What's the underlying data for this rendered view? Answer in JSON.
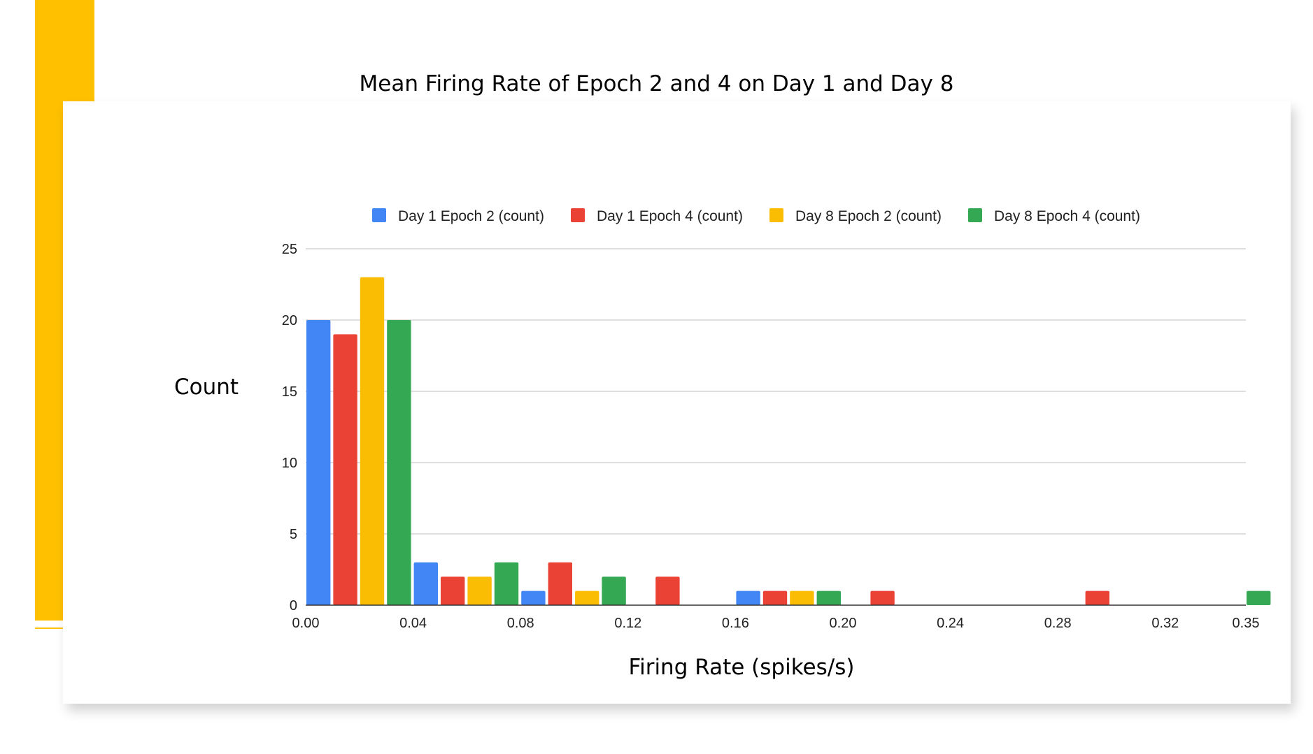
{
  "colors": {
    "accent": "#FFC000",
    "series": [
      "#4285F4",
      "#EA4335",
      "#FBBC04",
      "#34A853"
    ],
    "grid": "#cccccc",
    "axis": "#333333"
  },
  "chart_data": {
    "type": "bar",
    "title": "Mean Firing Rate of Epoch 2 and 4 on Day 1 and Day 8",
    "xlabel": "Firing Rate (spikes/s)",
    "ylabel": "Count",
    "xlim": [
      0,
      0.35
    ],
    "ylim": [
      0,
      25
    ],
    "x_ticks": [
      "0.00",
      "0.04",
      "0.08",
      "0.12",
      "0.16",
      "0.20",
      "0.24",
      "0.28",
      "0.32",
      "0.35"
    ],
    "y_ticks": [
      "0",
      "5",
      "10",
      "15",
      "20",
      "25"
    ],
    "grid": true,
    "legend_position": "top",
    "bin_width": 0.04,
    "bins": [
      "0.00",
      "0.04",
      "0.08",
      "0.12",
      "0.16",
      "0.20",
      "0.24",
      "0.28",
      "0.32"
    ],
    "series": [
      {
        "name": "Day 1 Epoch 2 (count)",
        "values": [
          20,
          3,
          1,
          0,
          1,
          0,
          0,
          0,
          0
        ]
      },
      {
        "name": "Day 1 Epoch 4 (count)",
        "values": [
          19,
          2,
          3,
          2,
          1,
          1,
          0,
          1,
          0
        ]
      },
      {
        "name": "Day 8 Epoch 2 (count)",
        "values": [
          23,
          2,
          1,
          0,
          1,
          0,
          0,
          0,
          0
        ]
      },
      {
        "name": "Day 8 Epoch 4 (count)",
        "values": [
          20,
          3,
          2,
          0,
          1,
          0,
          0,
          0,
          1
        ]
      }
    ]
  }
}
